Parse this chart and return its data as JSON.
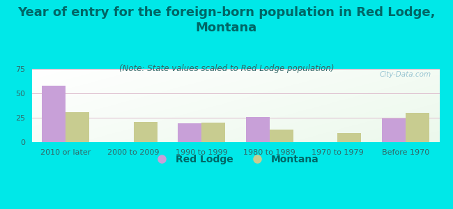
{
  "title": "Year of entry for the foreign-born population in Red Lodge,\nMontana",
  "subtitle": "(Note: State values scaled to Red Lodge population)",
  "categories": [
    "2010 or later",
    "2000 to 2009",
    "1990 to 1999",
    "1980 to 1989",
    "1970 to 1979",
    "Before 1970"
  ],
  "red_lodge": [
    58,
    0,
    19,
    26,
    0,
    24
  ],
  "montana": [
    31,
    21,
    20,
    13,
    9,
    30
  ],
  "red_lodge_color": "#c8a0d8",
  "montana_color": "#c8cc90",
  "background_color": "#00e8e8",
  "ylim": [
    0,
    75
  ],
  "yticks": [
    0,
    25,
    50,
    75
  ],
  "bar_width": 0.35,
  "title_fontsize": 13,
  "subtitle_fontsize": 8.5,
  "tick_fontsize": 8,
  "legend_fontsize": 10,
  "title_color": "#006666",
  "subtitle_color": "#336666",
  "tick_color": "#336666",
  "watermark": "City-Data.com"
}
